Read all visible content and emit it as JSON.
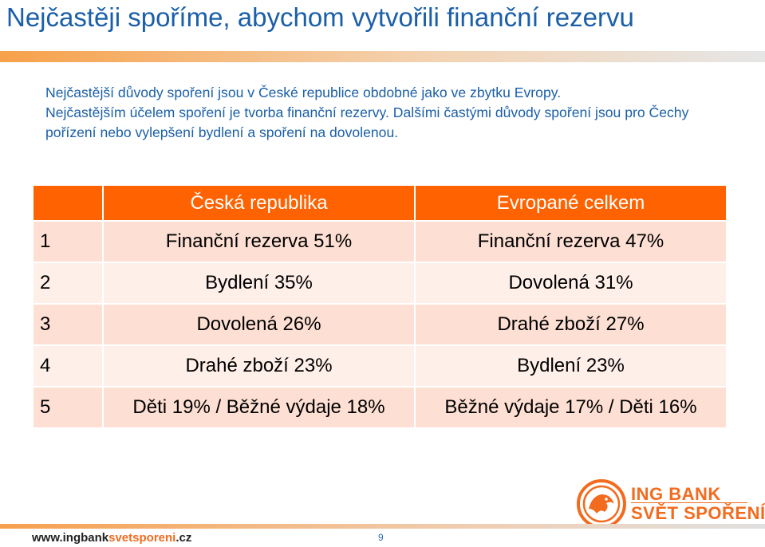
{
  "title": "Nejčastěji spoříme, abychom vytvořili finanční rezervu",
  "intro": {
    "line1": "Nejčastější důvody spoření jsou v České republice obdobné jako ve zbytku Evropy.",
    "line2": "Nejčastějším účelem spoření je tvorba finanční rezervy. Dalšími častými důvody spoření jsou pro Čechy pořízení nebo vylepšení bydlení a spoření na dovolenou."
  },
  "table": {
    "headers": [
      "",
      "Česká republika",
      "Evropané celkem"
    ],
    "rows": [
      {
        "rank": "1",
        "cz": "Finanční rezerva 51%",
        "eu": "Finanční rezerva 47%"
      },
      {
        "rank": "2",
        "cz": "Bydlení 35%",
        "eu": "Dovolená 31%"
      },
      {
        "rank": "3",
        "cz": "Dovolená 26%",
        "eu": "Drahé zboží 27%"
      },
      {
        "rank": "4",
        "cz": "Drahé zboží 23%",
        "eu": "Bydlení 23%"
      },
      {
        "rank": "5",
        "cz": "Děti 19% / Běžné výdaje 18%",
        "eu": "Běžné výdaje 17% / Děti 16%"
      }
    ]
  },
  "logo": {
    "icon": "lion-emblem-icon",
    "line1": "ING BANK",
    "line2": "SVĚT SPOŘENÍ"
  },
  "footer": {
    "url_prefix": "www.ingbank",
    "url_accent": "svetsporeni",
    "url_suffix": ".cz",
    "page_number": "9"
  },
  "colors": {
    "title": "#1a5fa8",
    "header_bg": "#ff6200",
    "row_odd": "#fddfd3",
    "row_even": "#feefe9",
    "accent": "#f26b1f"
  }
}
